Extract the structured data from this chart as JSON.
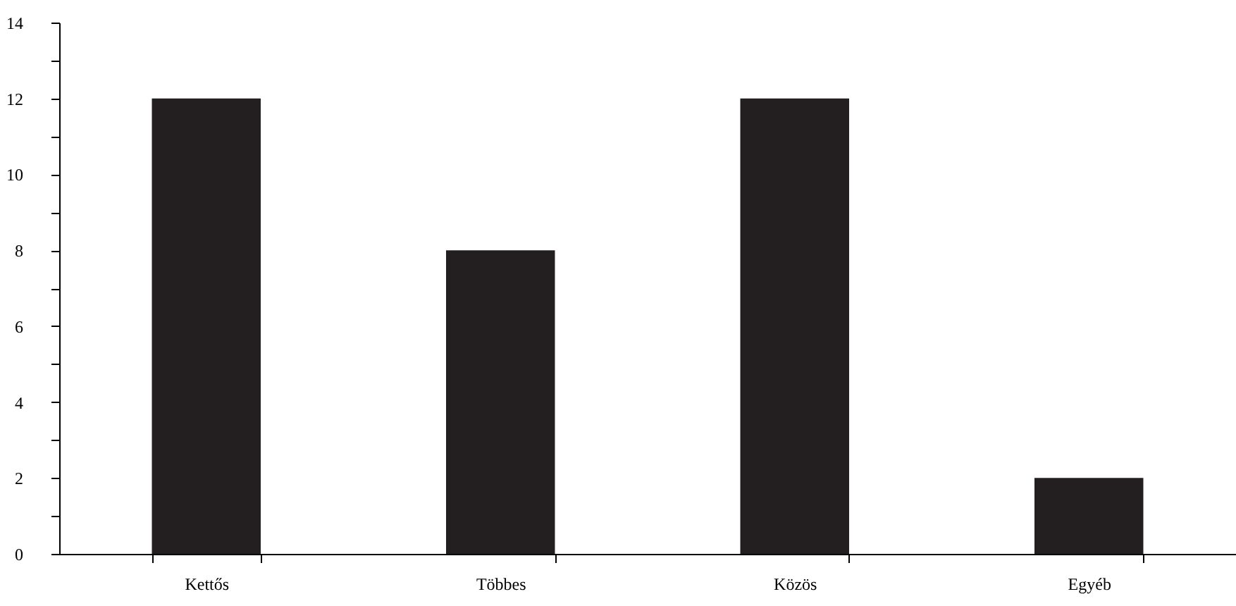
{
  "chart_data": {
    "type": "bar",
    "categories": [
      "Kettős",
      "Többes",
      "Közös",
      "Egyéb"
    ],
    "values": [
      12,
      8,
      12,
      2
    ],
    "color": "#231f20",
    "ylim": [
      0,
      14
    ],
    "yticks": [
      0,
      {
        "value": 1,
        "label": null
      },
      2,
      {
        "value": 3,
        "label": null
      },
      4,
      {
        "value": 5,
        "label": null
      },
      6,
      {
        "value": 7,
        "label": null
      },
      8,
      {
        "value": 9,
        "label": null
      },
      10,
      {
        "value": 11,
        "label": null
      },
      12,
      {
        "value": 13,
        "label": null
      },
      14
    ],
    "grid": false
  }
}
